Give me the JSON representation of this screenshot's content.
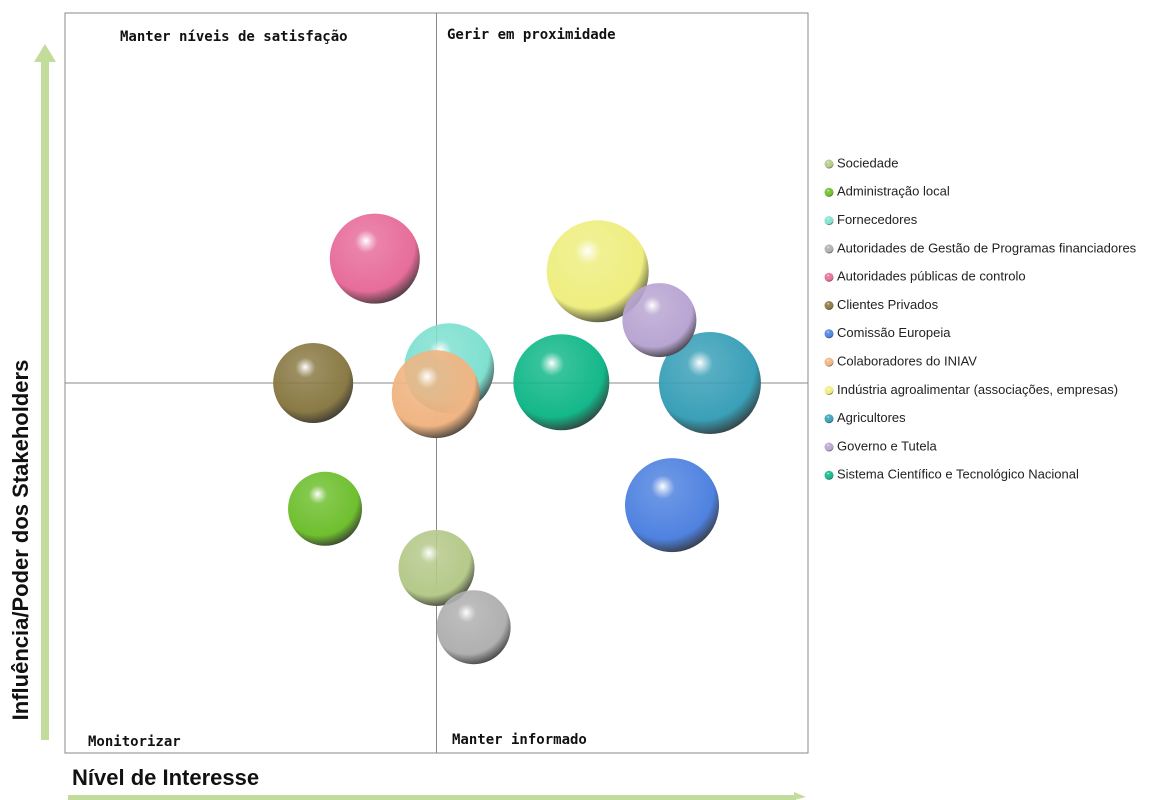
{
  "chart_data": {
    "type": "bubble",
    "x_label": "Nível de Interesse",
    "y_label": "Influência/Poder dos Stakeholders",
    "annotations": [
      "Manter níveis de satisfação",
      "Gerir em proximidade",
      "Monitorizar",
      "Manter informado"
    ],
    "xlim": [
      0,
      10
    ],
    "ylim": [
      0,
      10
    ],
    "series": [
      {
        "name": "Sociedade",
        "color": "#b5c98a",
        "x": 5.0,
        "y": 2.5,
        "size": 38
      },
      {
        "name": "Administração local",
        "color": "#6fbf2f",
        "x": 3.5,
        "y": 3.3,
        "size": 37
      },
      {
        "name": "Fornecedores",
        "color": "#7fe0d0",
        "x": 5.17,
        "y": 5.2,
        "size": 45
      },
      {
        "name": "Autoridades de Gestão de Programas financiadores",
        "color": "#b0b0b0",
        "x": 5.5,
        "y": 1.7,
        "size": 37
      },
      {
        "name": "Autoridades públicas de controlo",
        "color": "#e76d9a",
        "x": 4.17,
        "y": 6.68,
        "size": 45
      },
      {
        "name": "Clientes Privados",
        "color": "#8a7a45",
        "x": 3.34,
        "y": 5.0,
        "size": 40
      },
      {
        "name": "Comissão Europeia",
        "color": "#4f82e0",
        "x": 8.17,
        "y": 3.35,
        "size": 47
      },
      {
        "name": "Colaboradores do INIAV",
        "color": "#f0b583",
        "x": 4.99,
        "y": 4.85,
        "size": 44
      },
      {
        "name": "Indústria agroalimentar  (associações, empresas)",
        "color": "#eeee80",
        "x": 7.17,
        "y": 6.51,
        "size": 51
      },
      {
        "name": "Agricultores",
        "color": "#3aa0b8",
        "x": 8.68,
        "y": 5.0,
        "size": 51
      },
      {
        "name": "Governo e Tutela",
        "color": "#b9a5d2",
        "x": 8.0,
        "y": 5.85,
        "size": 37
      },
      {
        "name": "Sistema Científico e Tecnológico Nacional",
        "color": "#14b88a",
        "x": 6.68,
        "y": 5.01,
        "size": 48
      }
    ]
  }
}
